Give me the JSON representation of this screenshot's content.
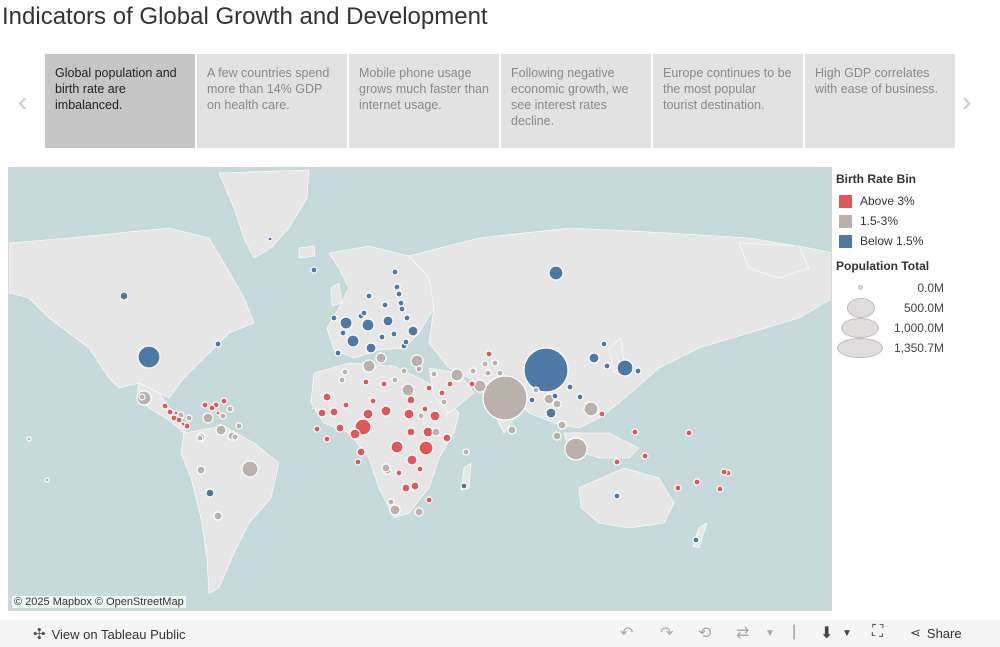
{
  "title": "Indicators of Global Growth and Development",
  "story_points": [
    {
      "text": "Global population and birth rate are imbalanced."
    },
    {
      "text": "A few countries spend more than 14% GDP on health care."
    },
    {
      "text": "Mobile phone usage grows much faster than internet usage."
    },
    {
      "text": "Following negative economic growth, we see interest rates decline."
    },
    {
      "text": "Europe continues to be the most popular tourist destination."
    },
    {
      "text": "High GDP correlates with ease of business."
    }
  ],
  "nav": {
    "prev": "‹",
    "next": "›"
  },
  "map": {
    "attribution": "© 2025 Mapbox  © OpenStreetMap"
  },
  "colors": {
    "above": "#e15759",
    "mid": "#bab0ac",
    "below": "#4e79a7",
    "ocean": "#c7dadb",
    "land": "#e8e8e8"
  },
  "legend": {
    "birth_title": "Birth Rate Bin",
    "birth_items": [
      {
        "label": "Above 3%",
        "color": "#e15759"
      },
      {
        "label": "1.5-3%",
        "color": "#bab0ac"
      },
      {
        "label": "Below 1.5%",
        "color": "#4e79a7"
      }
    ],
    "size_title": "Population Total",
    "size_items": [
      {
        "label": "0.0M"
      },
      {
        "label": "500.0M"
      },
      {
        "label": "1,000.0M"
      },
      {
        "label": "1,350.7M"
      }
    ]
  },
  "toolbar": {
    "view_label": "View on Tableau Public",
    "share_label": "Share"
  }
}
